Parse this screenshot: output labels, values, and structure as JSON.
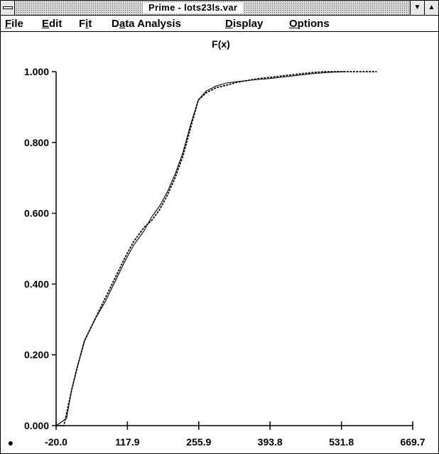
{
  "window": {
    "title": "Prime - lots23ls.var",
    "min_icon": "▼",
    "max_icon": "▲",
    "system_menu_icon": "system-menu-icon"
  },
  "menu": [
    {
      "pre": "",
      "ul": "F",
      "post": "ile"
    },
    {
      "pre": "",
      "ul": "E",
      "post": "dit"
    },
    {
      "pre": "F",
      "ul": "i",
      "post": "t"
    },
    {
      "pre": "D",
      "ul": "a",
      "post": "ta Analysis"
    },
    {
      "pre": "",
      "ul": "D",
      "post": "isplay"
    },
    {
      "pre": "",
      "ul": "O",
      "post": "ptions"
    }
  ],
  "chart_data": {
    "type": "line",
    "title": "F(x)",
    "xlabel": "",
    "ylabel": "",
    "xlim": [
      -20.0,
      669.7
    ],
    "ylim": [
      0.0,
      1.0
    ],
    "x_ticks": [
      "-20.0",
      "117.9",
      "255.9",
      "393.8",
      "531.8",
      "669.7"
    ],
    "y_ticks": [
      "0.000",
      "0.200",
      "0.400",
      "0.600",
      "0.800",
      "1.000"
    ],
    "grid": false,
    "marker_symbol": "●",
    "series": [
      {
        "style": "dashed",
        "x": [
          -20,
          -5,
          10,
          20,
          35,
          55,
          75,
          95,
          115,
          130,
          150,
          165,
          180,
          195,
          210,
          225,
          240,
          255,
          270,
          290,
          310,
          330,
          350,
          370,
          400,
          430,
          460,
          480,
          500,
          530,
          560,
          600
        ],
        "y": [
          0.0,
          0.0,
          0.1,
          0.16,
          0.24,
          0.3,
          0.36,
          0.42,
          0.48,
          0.52,
          0.56,
          0.58,
          0.61,
          0.65,
          0.7,
          0.76,
          0.84,
          0.92,
          0.94,
          0.955,
          0.962,
          0.97,
          0.975,
          0.98,
          0.985,
          0.99,
          0.995,
          0.998,
          1.0,
          1.0,
          1.0,
          1.0
        ]
      },
      {
        "style": "solid",
        "x": [
          -20,
          0,
          10,
          20,
          35,
          55,
          75,
          95,
          115,
          130,
          150,
          165,
          180,
          195,
          210,
          225,
          240,
          255,
          270,
          290,
          310,
          330,
          350,
          370,
          390,
          420,
          450,
          480,
          510,
          540
        ],
        "y": [
          0.0,
          0.02,
          0.1,
          0.16,
          0.24,
          0.3,
          0.35,
          0.41,
          0.47,
          0.51,
          0.55,
          0.59,
          0.62,
          0.66,
          0.71,
          0.77,
          0.85,
          0.92,
          0.945,
          0.96,
          0.968,
          0.972,
          0.975,
          0.978,
          0.98,
          0.985,
          0.99,
          0.995,
          0.998,
          1.0
        ]
      }
    ]
  }
}
